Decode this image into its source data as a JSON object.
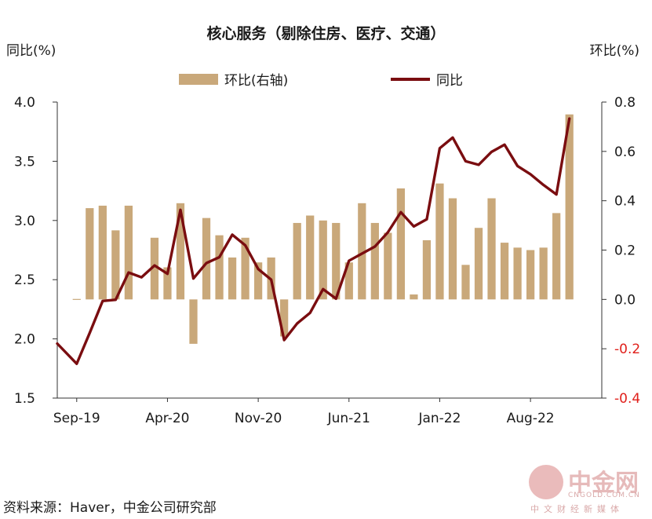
{
  "chart_data": {
    "type": "bar+line",
    "title": "核心服务（剔除住房、医疗、交通）",
    "left_axis_label": "同比(%)",
    "right_axis_label": "环比(%)",
    "legend": [
      {
        "name": "环比(右轴)",
        "type": "bar",
        "color": "#c9a87a"
      },
      {
        "name": "同比",
        "type": "line",
        "color": "#7a0d10"
      }
    ],
    "x_tick_labels": [
      "Sep-19",
      "Apr-20",
      "Nov-20",
      "Jun-21",
      "Jan-22",
      "Aug-22"
    ],
    "x_months": [
      "Aug-19",
      "Sep-19",
      "Oct-19",
      "Nov-19",
      "Dec-19",
      "Jan-20",
      "Feb-20",
      "Mar-20",
      "Apr-20",
      "May-20",
      "Jun-20",
      "Jul-20",
      "Aug-20",
      "Sep-20",
      "Oct-20",
      "Nov-20",
      "Dec-20",
      "Jan-21",
      "Feb-21",
      "Mar-21",
      "Apr-21",
      "May-21",
      "Jun-21",
      "Jul-21",
      "Aug-21",
      "Sep-21",
      "Oct-21",
      "Nov-21",
      "Dec-21",
      "Jan-22",
      "Feb-22",
      "Mar-22",
      "Apr-22",
      "May-22",
      "Jun-22",
      "Jul-22",
      "Aug-22",
      "Sep-22",
      "Oct-22",
      "Nov-22",
      "Dec-22",
      "Jan-23"
    ],
    "left_axis": {
      "min": 1.5,
      "max": 4.0,
      "ticks": [
        "1.5",
        "2.0",
        "2.5",
        "3.0",
        "3.5",
        "4.0"
      ]
    },
    "right_axis": {
      "min": -0.4,
      "max": 0.8,
      "ticks": [
        "-0.4",
        "-0.2",
        "0.0",
        "0.2",
        "0.4",
        "0.6",
        "0.8"
      ],
      "negative_tick_color": "#e0201b"
    },
    "series": [
      {
        "name": "环比(右轴)",
        "axis": "right",
        "values": [
          null,
          0.0,
          0.37,
          0.38,
          0.28,
          0.38,
          null,
          0.25,
          0.13,
          0.39,
          -0.18,
          0.33,
          0.26,
          0.17,
          0.25,
          0.15,
          0.17,
          -0.15,
          0.31,
          0.34,
          0.32,
          0.31,
          0.15,
          0.39,
          0.31,
          0.27,
          0.45,
          0.02,
          0.24,
          0.47,
          0.41,
          0.14,
          0.29,
          0.41,
          0.23,
          0.21,
          0.2,
          0.21,
          0.35,
          0.75,
          null,
          null
        ]
      },
      {
        "name": "同比",
        "axis": "left",
        "values": [
          1.96,
          1.79,
          2.05,
          2.32,
          2.33,
          2.56,
          2.52,
          2.62,
          2.55,
          3.09,
          2.51,
          2.64,
          2.69,
          2.88,
          2.79,
          2.59,
          2.5,
          1.99,
          2.13,
          2.22,
          2.42,
          2.34,
          2.66,
          2.72,
          2.78,
          2.9,
          3.07,
          2.95,
          3.01,
          3.61,
          3.7,
          3.5,
          3.47,
          3.58,
          3.64,
          3.46,
          3.39,
          3.3,
          3.22,
          3.86,
          null,
          null
        ]
      }
    ]
  },
  "source": "资料来源：Haver，中金公司研究部",
  "watermark": {
    "brand": "中金网",
    "url": "CNGOLD.COM.CN",
    "tagline": "中文财经新媒体"
  }
}
